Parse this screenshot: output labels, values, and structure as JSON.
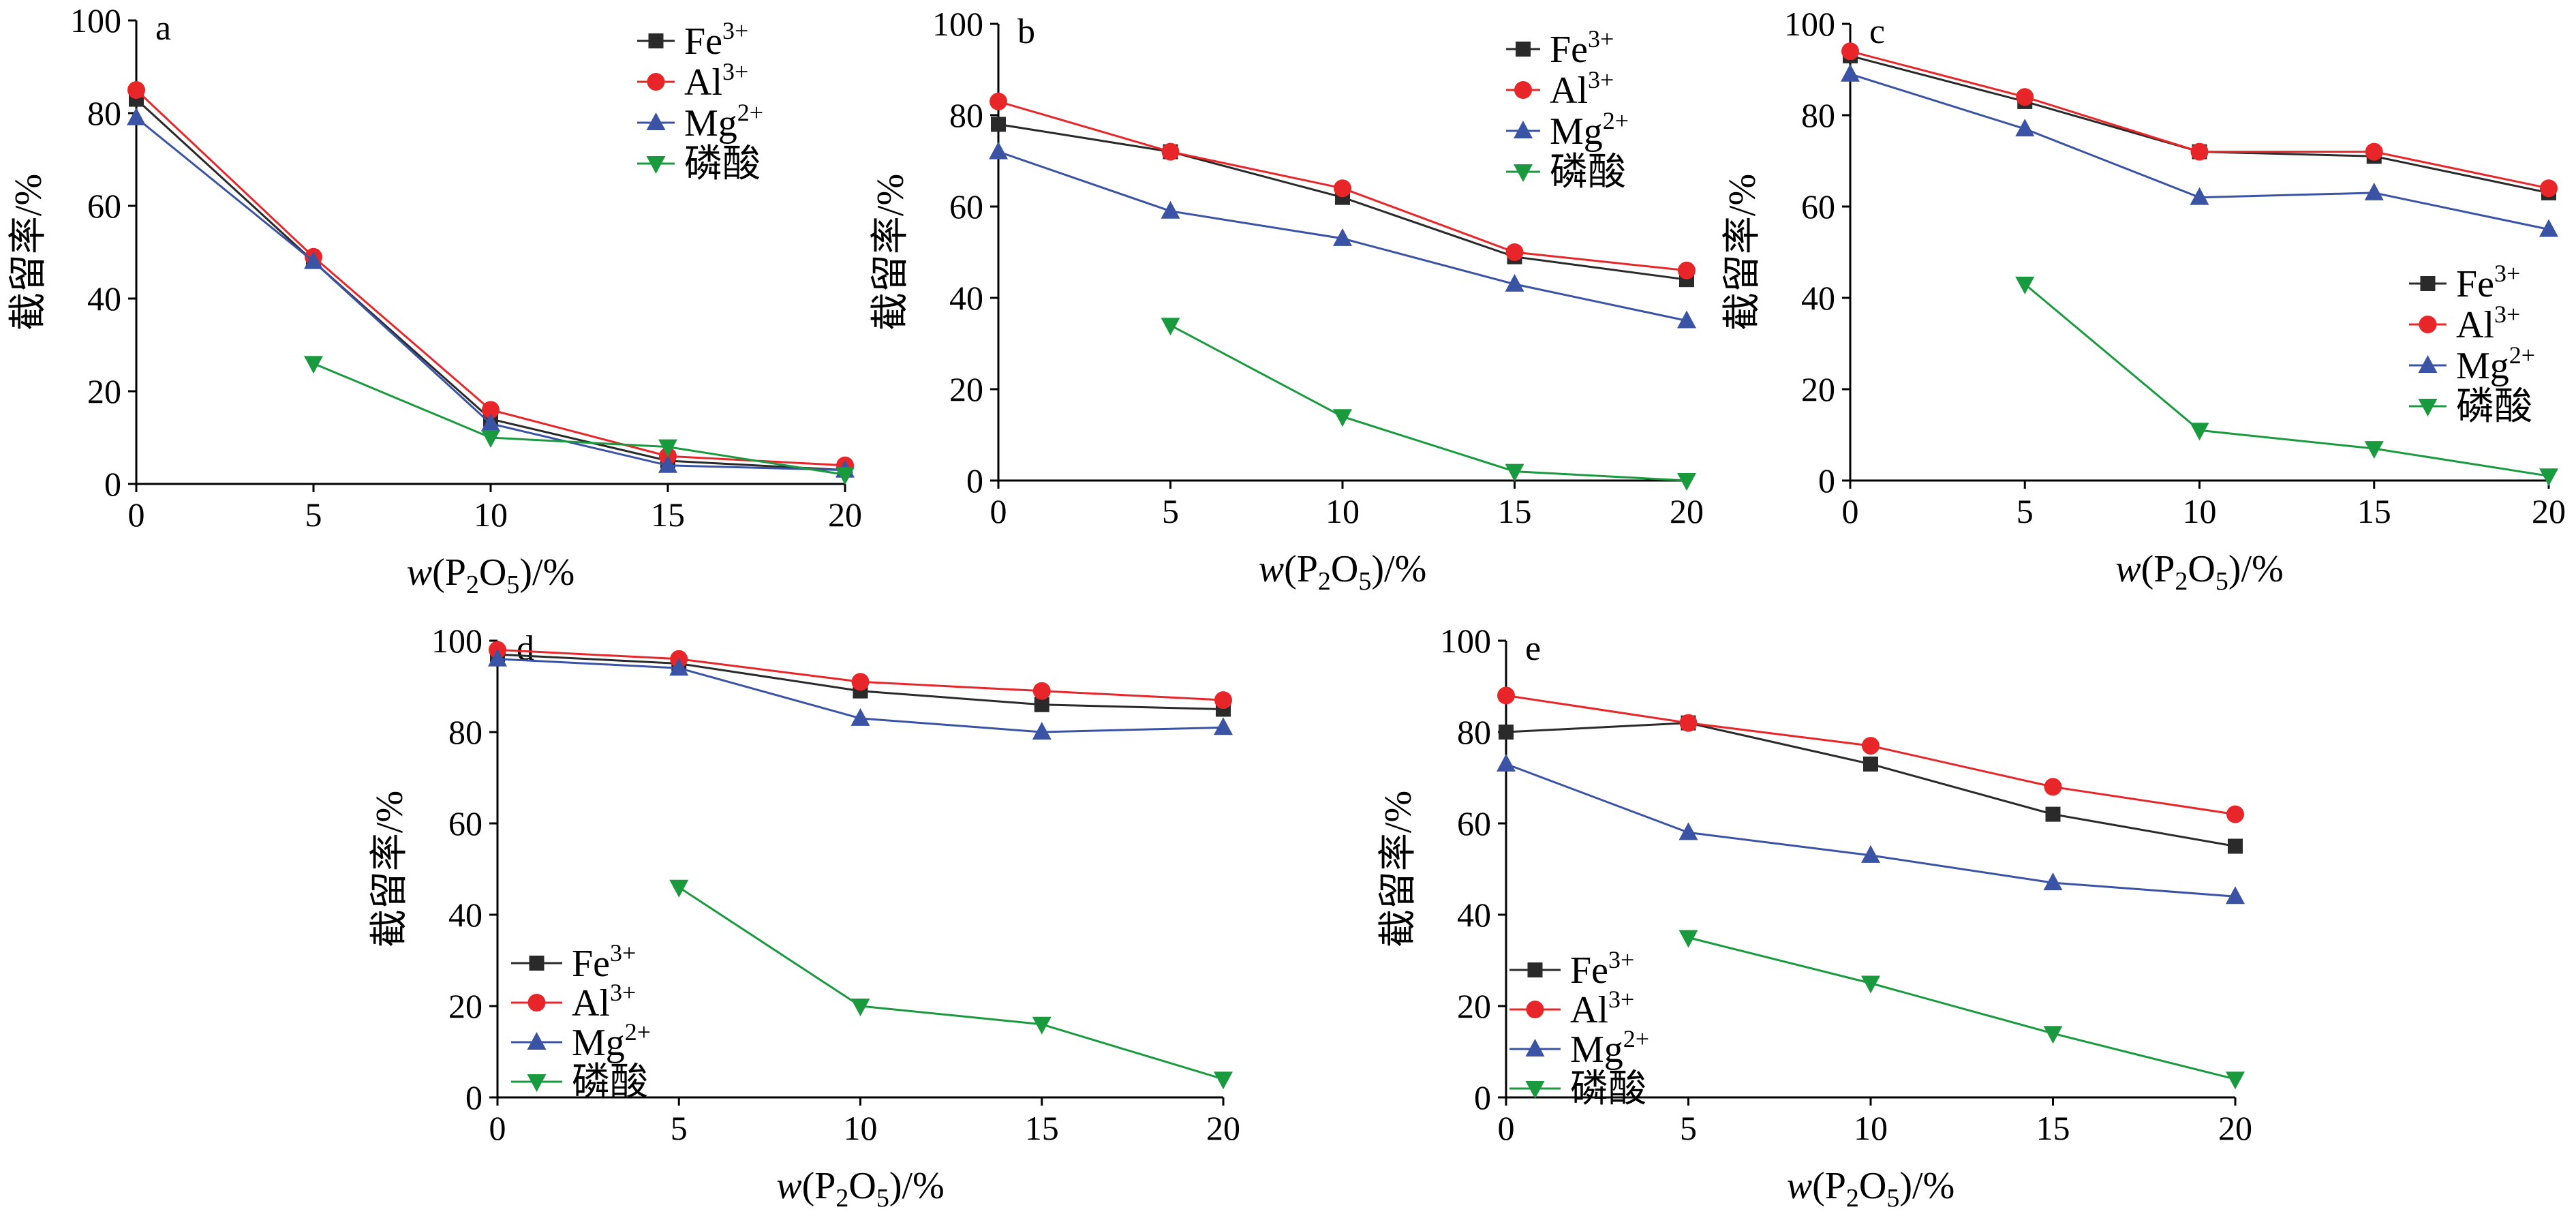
{
  "chart_data": [
    {
      "type": "line",
      "panel_label": "a",
      "x": [
        0,
        5,
        10,
        15,
        20
      ],
      "xlabel": {
        "var": "w",
        "open": "(P",
        "sub1": "2",
        "mid": "O",
        "sub2": "5",
        "close": ")/%"
      },
      "ylabel": "截留率/%",
      "xlim": [
        0,
        20
      ],
      "ylim": [
        0,
        100
      ],
      "xticks": [
        "0",
        "5",
        "10",
        "15",
        "20"
      ],
      "yticks": [
        "0",
        "20",
        "40",
        "60",
        "80",
        "100"
      ],
      "legend_position": "top-right",
      "series": [
        {
          "name": "Fe",
          "sup": "3+",
          "values": [
            83,
            48,
            14,
            5,
            3
          ],
          "color": "#2a2a2a",
          "marker": "square"
        },
        {
          "name": "Al",
          "sup": "3+",
          "values": [
            85,
            49,
            16,
            6,
            4
          ],
          "color": "#e8262a",
          "marker": "circle"
        },
        {
          "name": "Mg",
          "sup": "2+",
          "values": [
            79,
            48,
            13,
            4,
            3
          ],
          "color": "#3a53a4",
          "marker": "triangle-up"
        },
        {
          "name": "磷酸",
          "sup": "",
          "values": [
            null,
            26,
            10,
            8,
            2
          ],
          "color": "#1a9a3e",
          "marker": "triangle-down"
        }
      ]
    },
    {
      "type": "line",
      "panel_label": "b",
      "x": [
        0,
        5,
        10,
        15,
        20
      ],
      "xlabel": {
        "var": "w",
        "open": "(P",
        "sub1": "2",
        "mid": "O",
        "sub2": "5",
        "close": ")/%"
      },
      "ylabel": "截留率/%",
      "xlim": [
        0,
        20
      ],
      "ylim": [
        0,
        100
      ],
      "xticks": [
        "0",
        "5",
        "10",
        "15",
        "20"
      ],
      "yticks": [
        "0",
        "20",
        "40",
        "60",
        "80",
        "100"
      ],
      "legend_position": "top-right",
      "series": [
        {
          "name": "Fe",
          "sup": "3+",
          "values": [
            78,
            72,
            62,
            49,
            44
          ],
          "color": "#2a2a2a",
          "marker": "square"
        },
        {
          "name": "Al",
          "sup": "3+",
          "values": [
            83,
            72,
            64,
            50,
            46
          ],
          "color": "#e8262a",
          "marker": "circle"
        },
        {
          "name": "Mg",
          "sup": "2+",
          "values": [
            72,
            59,
            53,
            43,
            35
          ],
          "color": "#3a53a4",
          "marker": "triangle-up"
        },
        {
          "name": "磷酸",
          "sup": "",
          "values": [
            null,
            34,
            14,
            2,
            0
          ],
          "color": "#1a9a3e",
          "marker": "triangle-down"
        }
      ]
    },
    {
      "type": "line",
      "panel_label": "c",
      "x": [
        0,
        5,
        10,
        15,
        20
      ],
      "xlabel": {
        "var": "w",
        "open": "(P",
        "sub1": "2",
        "mid": "O",
        "sub2": "5",
        "close": ")/%"
      },
      "ylabel": "截留率/%",
      "xlim": [
        0,
        20
      ],
      "ylim": [
        0,
        100
      ],
      "xticks": [
        "0",
        "5",
        "10",
        "15",
        "20"
      ],
      "yticks": [
        "0",
        "20",
        "40",
        "60",
        "80",
        "100"
      ],
      "legend_position": "right",
      "series": [
        {
          "name": "Fe",
          "sup": "3+",
          "values": [
            93,
            83,
            72,
            71,
            63
          ],
          "color": "#2a2a2a",
          "marker": "square"
        },
        {
          "name": "Al",
          "sup": "3+",
          "values": [
            94,
            84,
            72,
            72,
            64
          ],
          "color": "#e8262a",
          "marker": "circle"
        },
        {
          "name": "Mg",
          "sup": "2+",
          "values": [
            89,
            77,
            62,
            63,
            55
          ],
          "color": "#3a53a4",
          "marker": "triangle-up"
        },
        {
          "name": "磷酸",
          "sup": "",
          "values": [
            null,
            43,
            11,
            7,
            1
          ],
          "color": "#1a9a3e",
          "marker": "triangle-down"
        }
      ]
    },
    {
      "type": "line",
      "panel_label": "d",
      "x": [
        0,
        5,
        10,
        15,
        20
      ],
      "xlabel": {
        "var": "w",
        "open": "(P",
        "sub1": "2",
        "mid": "O",
        "sub2": "5",
        "close": ")/%"
      },
      "ylabel": "截留率/%",
      "xlim": [
        0,
        20
      ],
      "ylim": [
        0,
        100
      ],
      "xticks": [
        "0",
        "5",
        "10",
        "15",
        "20"
      ],
      "yticks": [
        "0",
        "20",
        "40",
        "60",
        "80",
        "100"
      ],
      "legend_position": "bottom-left",
      "series": [
        {
          "name": "Fe",
          "sup": "3+",
          "values": [
            97,
            95,
            89,
            86,
            85
          ],
          "color": "#2a2a2a",
          "marker": "square"
        },
        {
          "name": "Al",
          "sup": "3+",
          "values": [
            98,
            96,
            91,
            89,
            87
          ],
          "color": "#e8262a",
          "marker": "circle"
        },
        {
          "name": "Mg",
          "sup": "2+",
          "values": [
            96,
            94,
            83,
            80,
            81
          ],
          "color": "#3a53a4",
          "marker": "triangle-up"
        },
        {
          "name": "磷酸",
          "sup": "",
          "values": [
            null,
            46,
            20,
            16,
            4
          ],
          "color": "#1a9a3e",
          "marker": "triangle-down"
        }
      ]
    },
    {
      "type": "line",
      "panel_label": "e",
      "x": [
        0,
        5,
        10,
        15,
        20
      ],
      "xlabel": {
        "var": "w",
        "open": "(P",
        "sub1": "2",
        "mid": "O",
        "sub2": "5",
        "close": ")/%"
      },
      "ylabel": "截留率/%",
      "xlim": [
        0,
        20
      ],
      "ylim": [
        0,
        100
      ],
      "xticks": [
        "0",
        "5",
        "10",
        "15",
        "20"
      ],
      "yticks": [
        "0",
        "20",
        "40",
        "60",
        "80",
        "100"
      ],
      "legend_position": "bottom-left",
      "series": [
        {
          "name": "Fe",
          "sup": "3+",
          "values": [
            80,
            82,
            73,
            62,
            55
          ],
          "color": "#2a2a2a",
          "marker": "square"
        },
        {
          "name": "Al",
          "sup": "3+",
          "values": [
            88,
            82,
            77,
            68,
            62
          ],
          "color": "#e8262a",
          "marker": "circle"
        },
        {
          "name": "Mg",
          "sup": "2+",
          "values": [
            73,
            58,
            53,
            47,
            44
          ],
          "color": "#3a53a4",
          "marker": "triangle-up"
        },
        {
          "name": "磷酸",
          "sup": "",
          "values": [
            null,
            35,
            25,
            14,
            4
          ],
          "color": "#1a9a3e",
          "marker": "triangle-down"
        }
      ]
    }
  ]
}
